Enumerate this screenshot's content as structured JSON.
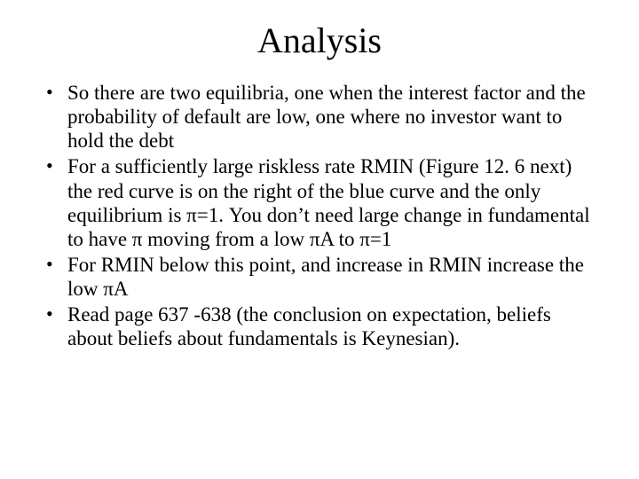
{
  "title": "Analysis",
  "bullets": [
    "So there are two equilibria, one when the interest factor and the probability of default are low, one where no investor want to hold the debt",
    "For a sufficiently large riskless rate RMIN (Figure 12. 6 next) the red curve is on the right of the blue curve and the only equilibrium is π=1. You don’t need large change in fundamental to have π moving from a low πA to π=1",
    "For RMIN below this point, and increase in RMIN increase the low πA",
    "Read page 637 -638 (the conclusion on expectation, beliefs about beliefs about fundamentals is Keynesian)."
  ]
}
